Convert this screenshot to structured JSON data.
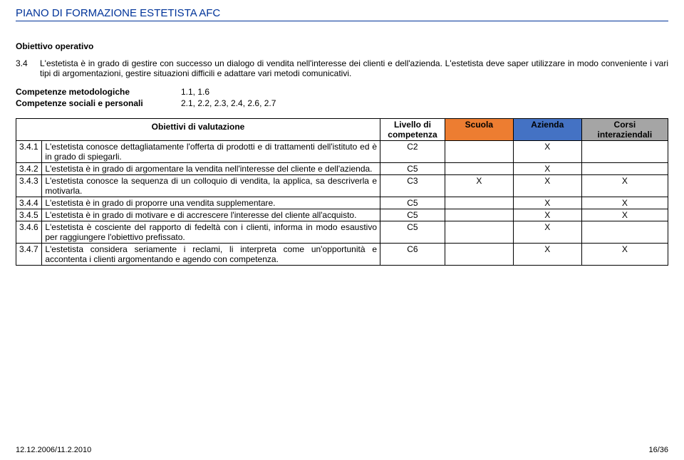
{
  "doc_title": "PIANO DI FORMAZIONE ESTETISTA AFC",
  "section_label": "Obiettivo operativo",
  "objective": {
    "num": "3.4",
    "text": "L'estetista è in grado di gestire con successo un dialogo di vendita nell'interesse dei clienti e dell'azienda. L'estetista deve saper utilizzare in modo conveniente i vari tipi di argomentazioni, gestire situazioni difficili e adattare vari metodi comunicativi."
  },
  "competences": [
    {
      "label": "Competenze metodologiche",
      "value": "1.1, 1.6"
    },
    {
      "label": "Competenze sociali e personali",
      "value": "2.1, 2.2, 2.3, 2.4, 2.6, 2.7"
    }
  ],
  "table": {
    "headers": {
      "obj": "Obiettivi di valutazione",
      "liv_l1": "Livello di",
      "liv_l2": "competenza",
      "scu": "Scuola",
      "azi": "Azienda",
      "cor_l1": "Corsi",
      "cor_l2": "interaziendali"
    },
    "header_colors": {
      "scu": "#ed7d31",
      "azi": "#4472c4",
      "cor": "#a5a5a5"
    },
    "rows": [
      {
        "num": "3.4.1",
        "obj": "L'estetista conosce dettagliatamente l'offerta di prodotti e di trattamenti dell'istituto ed è in grado di spiegarli.",
        "liv": "C2",
        "scu": "",
        "azi": "X",
        "cor": ""
      },
      {
        "num": "3.4.2",
        "obj": "L'estetista è in grado di argomentare la vendita nell'interesse del cliente e dell'azienda.",
        "liv": "C5",
        "scu": "",
        "azi": "X",
        "cor": ""
      },
      {
        "num": "3.4.3",
        "obj": "L'estetista conosce la sequenza di un colloquio di vendita, la applica, sa descriverla e motivarla.",
        "liv": "C3",
        "scu": "X",
        "azi": "X",
        "cor": "X"
      },
      {
        "num": "3.4.4",
        "obj": "L'estetista è in grado di proporre una vendita supplementare.",
        "liv": "C5",
        "scu": "",
        "azi": "X",
        "cor": "X"
      },
      {
        "num": "3.4.5",
        "obj": "L'estetista è in grado di motivare e di accrescere l'interesse del cliente all'acquisto.",
        "liv": "C5",
        "scu": "",
        "azi": "X",
        "cor": "X"
      },
      {
        "num": "3.4.6",
        "obj": "L'estetista è cosciente del rapporto di fedeltà con i clienti, informa in modo esaustivo per raggiungere l'obiettivo prefissato.",
        "liv": "C5",
        "scu": "",
        "azi": "X",
        "cor": ""
      },
      {
        "num": "3.4.7",
        "obj": "L'estetista considera seriamente i reclami, li interpreta come un'opportunità e accontenta i clienti argomentando e agendo con competenza.",
        "liv": "C6",
        "scu": "",
        "azi": "X",
        "cor": "X"
      }
    ]
  },
  "footer": {
    "left": "12.12.2006/11.2.2010",
    "right": "16/36"
  }
}
